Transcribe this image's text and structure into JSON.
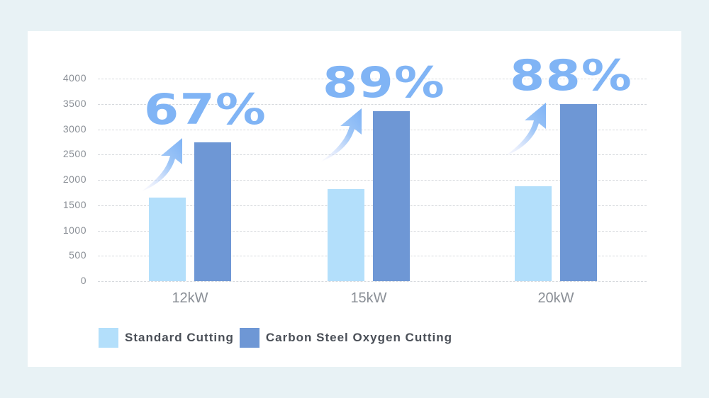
{
  "chart_data": {
    "type": "bar",
    "title": "",
    "xlabel": "",
    "ylabel": "",
    "categories": [
      "12kW",
      "15kW",
      "20kW"
    ],
    "series": [
      {
        "name": "Standard Cutting",
        "color": "#b3dffb",
        "values": [
          1650,
          1820,
          1880
        ]
      },
      {
        "name": "Carbon Steel Oxygen Cutting",
        "color": "#6e97d5",
        "values": [
          2740,
          3360,
          3500
        ]
      }
    ],
    "annotations": [
      "67%",
      "89%",
      "88%"
    ],
    "ylim": [
      0,
      4000
    ],
    "yticks": [
      "0",
      "500",
      "1000",
      "1500",
      "2000",
      "2500",
      "3000",
      "3500",
      "4000"
    ],
    "grid": true,
    "legend_position": "bottom-left"
  },
  "legend": {
    "items": [
      {
        "label": "Standard Cutting",
        "color": "#b3dffb"
      },
      {
        "label": "Carbon Steel Oxygen Cutting",
        "color": "#6e97d5"
      }
    ]
  }
}
